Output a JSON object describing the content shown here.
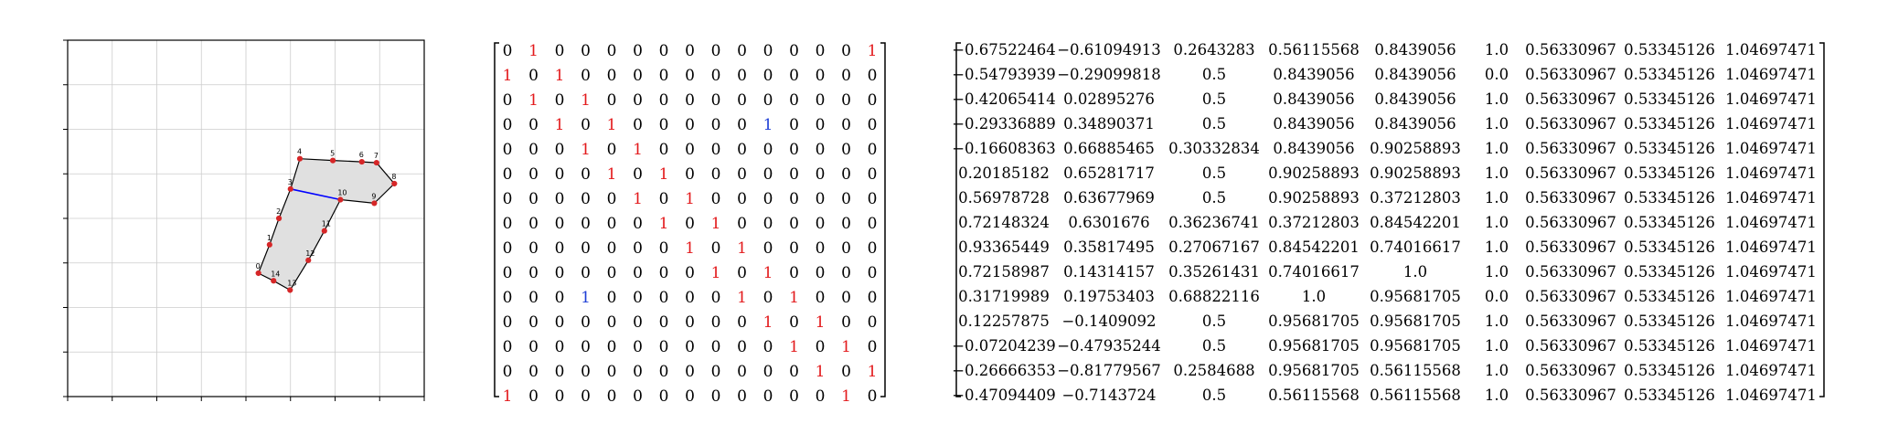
{
  "colors": {
    "edge": "#000000",
    "highlight_edge": "#0000ff",
    "vertex": "#d62728",
    "polygon_fill": "#e0e0e0",
    "grid": "#cccccc",
    "adj_one": "#e31a1c",
    "adj_highlight": "#1f3fd6",
    "text": "#000000"
  },
  "diagram": {
    "vertices": [
      {
        "label": "0",
        "x": 4.28,
        "y": 2.77
      },
      {
        "label": "1",
        "x": 4.53,
        "y": 3.41
      },
      {
        "label": "2",
        "x": 4.74,
        "y": 4.0
      },
      {
        "label": "3",
        "x": 5.0,
        "y": 4.66
      },
      {
        "label": "4",
        "x": 5.21,
        "y": 5.34
      },
      {
        "label": "5",
        "x": 5.95,
        "y": 5.3
      },
      {
        "label": "6",
        "x": 6.6,
        "y": 5.27
      },
      {
        "label": "7",
        "x": 6.93,
        "y": 5.25
      },
      {
        "label": "8",
        "x": 7.33,
        "y": 4.78
      },
      {
        "label": "9",
        "x": 6.88,
        "y": 4.34
      },
      {
        "label": "10",
        "x": 6.12,
        "y": 4.42
      },
      {
        "label": "11",
        "x": 5.76,
        "y": 3.72
      },
      {
        "label": "12",
        "x": 5.4,
        "y": 3.06
      },
      {
        "label": "13",
        "x": 4.99,
        "y": 2.39
      },
      {
        "label": "14",
        "x": 4.62,
        "y": 2.6
      }
    ],
    "highlight_edge": [
      "3",
      "10"
    ]
  },
  "adjacency": {
    "rows": [
      [
        0,
        1,
        0,
        0,
        0,
        0,
        0,
        0,
        0,
        0,
        0,
        0,
        0,
        0,
        1
      ],
      [
        1,
        0,
        1,
        0,
        0,
        0,
        0,
        0,
        0,
        0,
        0,
        0,
        0,
        0,
        0
      ],
      [
        0,
        1,
        0,
        1,
        0,
        0,
        0,
        0,
        0,
        0,
        0,
        0,
        0,
        0,
        0
      ],
      [
        0,
        0,
        1,
        0,
        1,
        0,
        0,
        0,
        0,
        0,
        1,
        0,
        0,
        0,
        0
      ],
      [
        0,
        0,
        0,
        1,
        0,
        1,
        0,
        0,
        0,
        0,
        0,
        0,
        0,
        0,
        0
      ],
      [
        0,
        0,
        0,
        0,
        1,
        0,
        1,
        0,
        0,
        0,
        0,
        0,
        0,
        0,
        0
      ],
      [
        0,
        0,
        0,
        0,
        0,
        1,
        0,
        1,
        0,
        0,
        0,
        0,
        0,
        0,
        0
      ],
      [
        0,
        0,
        0,
        0,
        0,
        0,
        1,
        0,
        1,
        0,
        0,
        0,
        0,
        0,
        0
      ],
      [
        0,
        0,
        0,
        0,
        0,
        0,
        0,
        1,
        0,
        1,
        0,
        0,
        0,
        0,
        0
      ],
      [
        0,
        0,
        0,
        0,
        0,
        0,
        0,
        0,
        1,
        0,
        1,
        0,
        0,
        0,
        0
      ],
      [
        0,
        0,
        0,
        1,
        0,
        0,
        0,
        0,
        0,
        1,
        0,
        1,
        0,
        0,
        0
      ],
      [
        0,
        0,
        0,
        0,
        0,
        0,
        0,
        0,
        0,
        0,
        1,
        0,
        1,
        0,
        0
      ],
      [
        0,
        0,
        0,
        0,
        0,
        0,
        0,
        0,
        0,
        0,
        0,
        1,
        0,
        1,
        0
      ],
      [
        0,
        0,
        0,
        0,
        0,
        0,
        0,
        0,
        0,
        0,
        0,
        0,
        1,
        0,
        1
      ],
      [
        1,
        0,
        0,
        0,
        0,
        0,
        0,
        0,
        0,
        0,
        0,
        0,
        0,
        1,
        0
      ]
    ],
    "highlight_cells": [
      [
        3,
        10
      ],
      [
        10,
        3
      ]
    ]
  },
  "features": {
    "rows": [
      [
        "−0.67522464",
        "−0.61094913",
        "0.2643283",
        "0.56115568",
        "0.8439056",
        "1.0",
        "0.56330967",
        "0.53345126",
        "1.04697471"
      ],
      [
        "−0.54793939",
        "−0.29099818",
        "0.5",
        "0.8439056",
        "0.8439056",
        "0.0",
        "0.56330967",
        "0.53345126",
        "1.04697471"
      ],
      [
        "−0.42065414",
        "0.02895276",
        "0.5",
        "0.8439056",
        "0.8439056",
        "1.0",
        "0.56330967",
        "0.53345126",
        "1.04697471"
      ],
      [
        "−0.29336889",
        "0.34890371",
        "0.5",
        "0.8439056",
        "0.8439056",
        "1.0",
        "0.56330967",
        "0.53345126",
        "1.04697471"
      ],
      [
        "−0.16608363",
        "0.66885465",
        "0.30332834",
        "0.8439056",
        "0.90258893",
        "1.0",
        "0.56330967",
        "0.53345126",
        "1.04697471"
      ],
      [
        "0.20185182",
        "0.65281717",
        "0.5",
        "0.90258893",
        "0.90258893",
        "1.0",
        "0.56330967",
        "0.53345126",
        "1.04697471"
      ],
      [
        "0.56978728",
        "0.63677969",
        "0.5",
        "0.90258893",
        "0.37212803",
        "1.0",
        "0.56330967",
        "0.53345126",
        "1.04697471"
      ],
      [
        "0.72148324",
        "0.6301676",
        "0.36236741",
        "0.37212803",
        "0.84542201",
        "1.0",
        "0.56330967",
        "0.53345126",
        "1.04697471"
      ],
      [
        "0.93365449",
        "0.35817495",
        "0.27067167",
        "0.84542201",
        "0.74016617",
        "1.0",
        "0.56330967",
        "0.53345126",
        "1.04697471"
      ],
      [
        "0.72158987",
        "0.14314157",
        "0.35261431",
        "0.74016617",
        "1.0",
        "1.0",
        "0.56330967",
        "0.53345126",
        "1.04697471"
      ],
      [
        "0.31719989",
        "0.19753403",
        "0.68822116",
        "1.0",
        "0.95681705",
        "0.0",
        "0.56330967",
        "0.53345126",
        "1.04697471"
      ],
      [
        "0.12257875",
        "−0.1409092",
        "0.5",
        "0.95681705",
        "0.95681705",
        "1.0",
        "0.56330967",
        "0.53345126",
        "1.04697471"
      ],
      [
        "−0.07204239",
        "−0.47935244",
        "0.5",
        "0.95681705",
        "0.95681705",
        "1.0",
        "0.56330967",
        "0.53345126",
        "1.04697471"
      ],
      [
        "−0.26666353",
        "−0.81779567",
        "0.2584688",
        "0.95681705",
        "0.56115568",
        "1.0",
        "0.56330967",
        "0.53345126",
        "1.04697471"
      ],
      [
        "−0.47094409",
        "−0.7143724",
        "0.5",
        "0.56115568",
        "0.56115568",
        "1.0",
        "0.56330967",
        "0.53345126",
        "1.04697471"
      ]
    ]
  }
}
